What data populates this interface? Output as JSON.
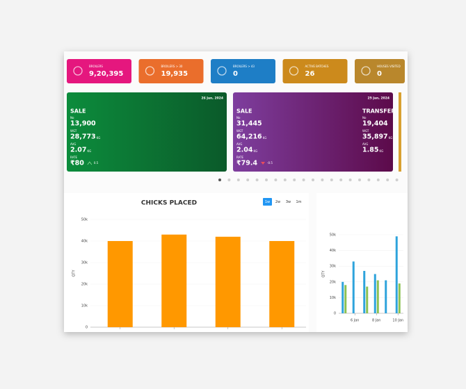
{
  "stat_cards": [
    {
      "label": "BROILERS",
      "value": "9,20,395",
      "color": "#e5177e"
    },
    {
      "label": "BROILERS > 30",
      "value": "19,935",
      "color": "#ea6e2c"
    },
    {
      "label": "BROILERS > 43",
      "value": "0",
      "color": "#1e7ec6"
    },
    {
      "label": "ACTIVE BATCHES",
      "value": "26",
      "color": "#cc8a1c"
    },
    {
      "label": "HOUSES VISITED",
      "value": "0",
      "color": "#b9872c"
    }
  ],
  "panels": [
    {
      "date": "26 Jan, 2024",
      "sections": [
        {
          "title": "SALE",
          "fields": [
            {
              "label": "No",
              "value": "13,900"
            },
            {
              "label": "WGT",
              "value": "28,773",
              "unit": "KG"
            },
            {
              "label": "AVG",
              "value": "2.07",
              "unit": "KG"
            },
            {
              "label": "RATE",
              "value": "₹80",
              "change": "0.5"
            }
          ]
        }
      ]
    },
    {
      "date": "25 Jan, 2024",
      "sections": [
        {
          "title": "SALE",
          "fields": [
            {
              "label": "No",
              "value": "31,445"
            },
            {
              "label": "WGT",
              "value": "64,216",
              "unit": "KG"
            },
            {
              "label": "AVG",
              "value": "2.04",
              "unit": "KG"
            },
            {
              "label": "RATE",
              "value": "₹79.4",
              "change": "-0.5"
            }
          ]
        },
        {
          "title": "TRANSFER",
          "fields": [
            {
              "label": "No",
              "value": "19,404"
            },
            {
              "label": "WGT",
              "value": "35,897",
              "unit": "KG"
            },
            {
              "label": "AVG",
              "value": "1.85",
              "unit": "KG"
            }
          ]
        }
      ]
    }
  ],
  "chicks_chart": {
    "type": "bar",
    "title": "CHICKS PLACED",
    "ranges": [
      "1w",
      "2w",
      "3w",
      "1m"
    ],
    "y_label": "QTY",
    "ylim": [
      0,
      50000
    ],
    "yticks": [
      0,
      {
        "value": 10000,
        "label": "10k"
      },
      {
        "value": 20000,
        "label": "20k"
      },
      {
        "value": 30000,
        "label": "30k"
      },
      {
        "value": 40000,
        "label": "40k"
      },
      {
        "value": 50000,
        "label": "50k"
      }
    ],
    "values": [
      40000,
      43000,
      42000,
      40000
    ],
    "color": "#ff9800"
  },
  "side_chart": {
    "type": "bar",
    "y_label": "QTY",
    "categories": [
      null,
      "6 Jan",
      null,
      "8 Jan",
      null,
      "10 Jan"
    ],
    "ylim": [
      0,
      50000
    ],
    "yticks": [
      0,
      {
        "value": 10000,
        "label": "10k"
      },
      {
        "value": 20000,
        "label": "20k"
      },
      {
        "value": 30000,
        "label": "30k"
      },
      {
        "value": 40000,
        "label": "40k"
      },
      {
        "value": 50000,
        "label": "50k"
      }
    ],
    "series": [
      {
        "color": "#2ea3dc",
        "values": [
          20000,
          33000,
          27000,
          25000,
          21000,
          49000
        ]
      },
      {
        "color": "#8cc152",
        "values": [
          18000,
          null,
          17000,
          21000,
          null,
          19000
        ]
      }
    ]
  }
}
